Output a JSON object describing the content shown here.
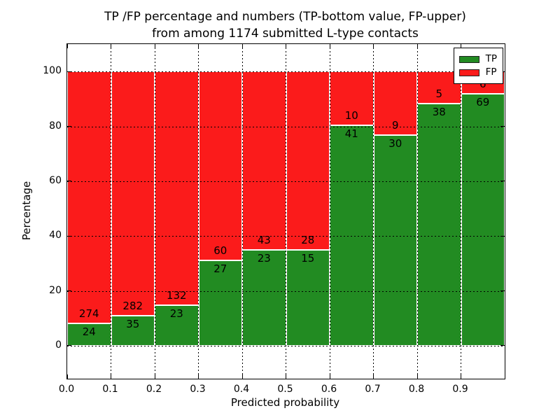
{
  "title": {
    "line1": "TP /FP percentage and numbers (TP-bottom value, FP-upper)",
    "line2": "from among 1174 submitted L-type contacts"
  },
  "axes": {
    "ylabel": "Percentage",
    "xlabel": "Predicted probability",
    "yticks": [
      0,
      20,
      40,
      60,
      80,
      100
    ],
    "yticklabels": [
      "0",
      "20",
      "40",
      "60",
      "80",
      "100"
    ],
    "xticks": [
      0.0,
      0.1,
      0.2,
      0.3,
      0.4,
      0.5,
      0.6,
      0.7,
      0.8,
      0.9
    ],
    "xticklabels": [
      "0.0",
      "0.1",
      "0.2",
      "0.3",
      "0.4",
      "0.5",
      "0.6",
      "0.7",
      "0.8",
      "0.9"
    ],
    "ylim": [
      -12,
      110
    ],
    "xlim": [
      0,
      1
    ]
  },
  "legend": {
    "position": "upper right",
    "items": [
      {
        "label": "TP",
        "color": "#228b22"
      },
      {
        "label": "FP",
        "color": "#fb1b1b"
      }
    ]
  },
  "chart_data": {
    "type": "bar",
    "stacked": true,
    "normalized_to_percent": true,
    "title": "TP /FP percentage and numbers (TP-bottom value, FP-upper)\nfrom among 1174 submitted L-type contacts",
    "xlabel": "Predicted probability",
    "ylabel": "Percentage",
    "total_contacts": 1174,
    "bin_starts": [
      0.0,
      0.1,
      0.2,
      0.3,
      0.4,
      0.5,
      0.6,
      0.7,
      0.8,
      0.9
    ],
    "bin_width": 0.1,
    "categories": [
      "0.0-0.1",
      "0.1-0.2",
      "0.2-0.3",
      "0.3-0.4",
      "0.4-0.5",
      "0.5-0.6",
      "0.6-0.7",
      "0.7-0.8",
      "0.8-0.9",
      "0.9-1.0"
    ],
    "series": [
      {
        "name": "TP",
        "color": "#228b22",
        "counts": [
          24,
          35,
          23,
          27,
          23,
          15,
          41,
          30,
          38,
          69
        ],
        "percent": [
          8.1,
          11.0,
          14.8,
          31.0,
          34.8,
          34.9,
          80.4,
          76.9,
          88.4,
          92.0
        ]
      },
      {
        "name": "FP",
        "color": "#fb1b1b",
        "counts": [
          274,
          282,
          132,
          60,
          43,
          28,
          10,
          9,
          5,
          6
        ],
        "percent": [
          91.9,
          89.0,
          85.2,
          69.0,
          65.2,
          65.1,
          19.6,
          23.1,
          11.6,
          8.0
        ]
      }
    ],
    "ylim": [
      -12,
      110
    ],
    "xlim": [
      0,
      1
    ],
    "grid": true,
    "legend_position": "upper right"
  }
}
